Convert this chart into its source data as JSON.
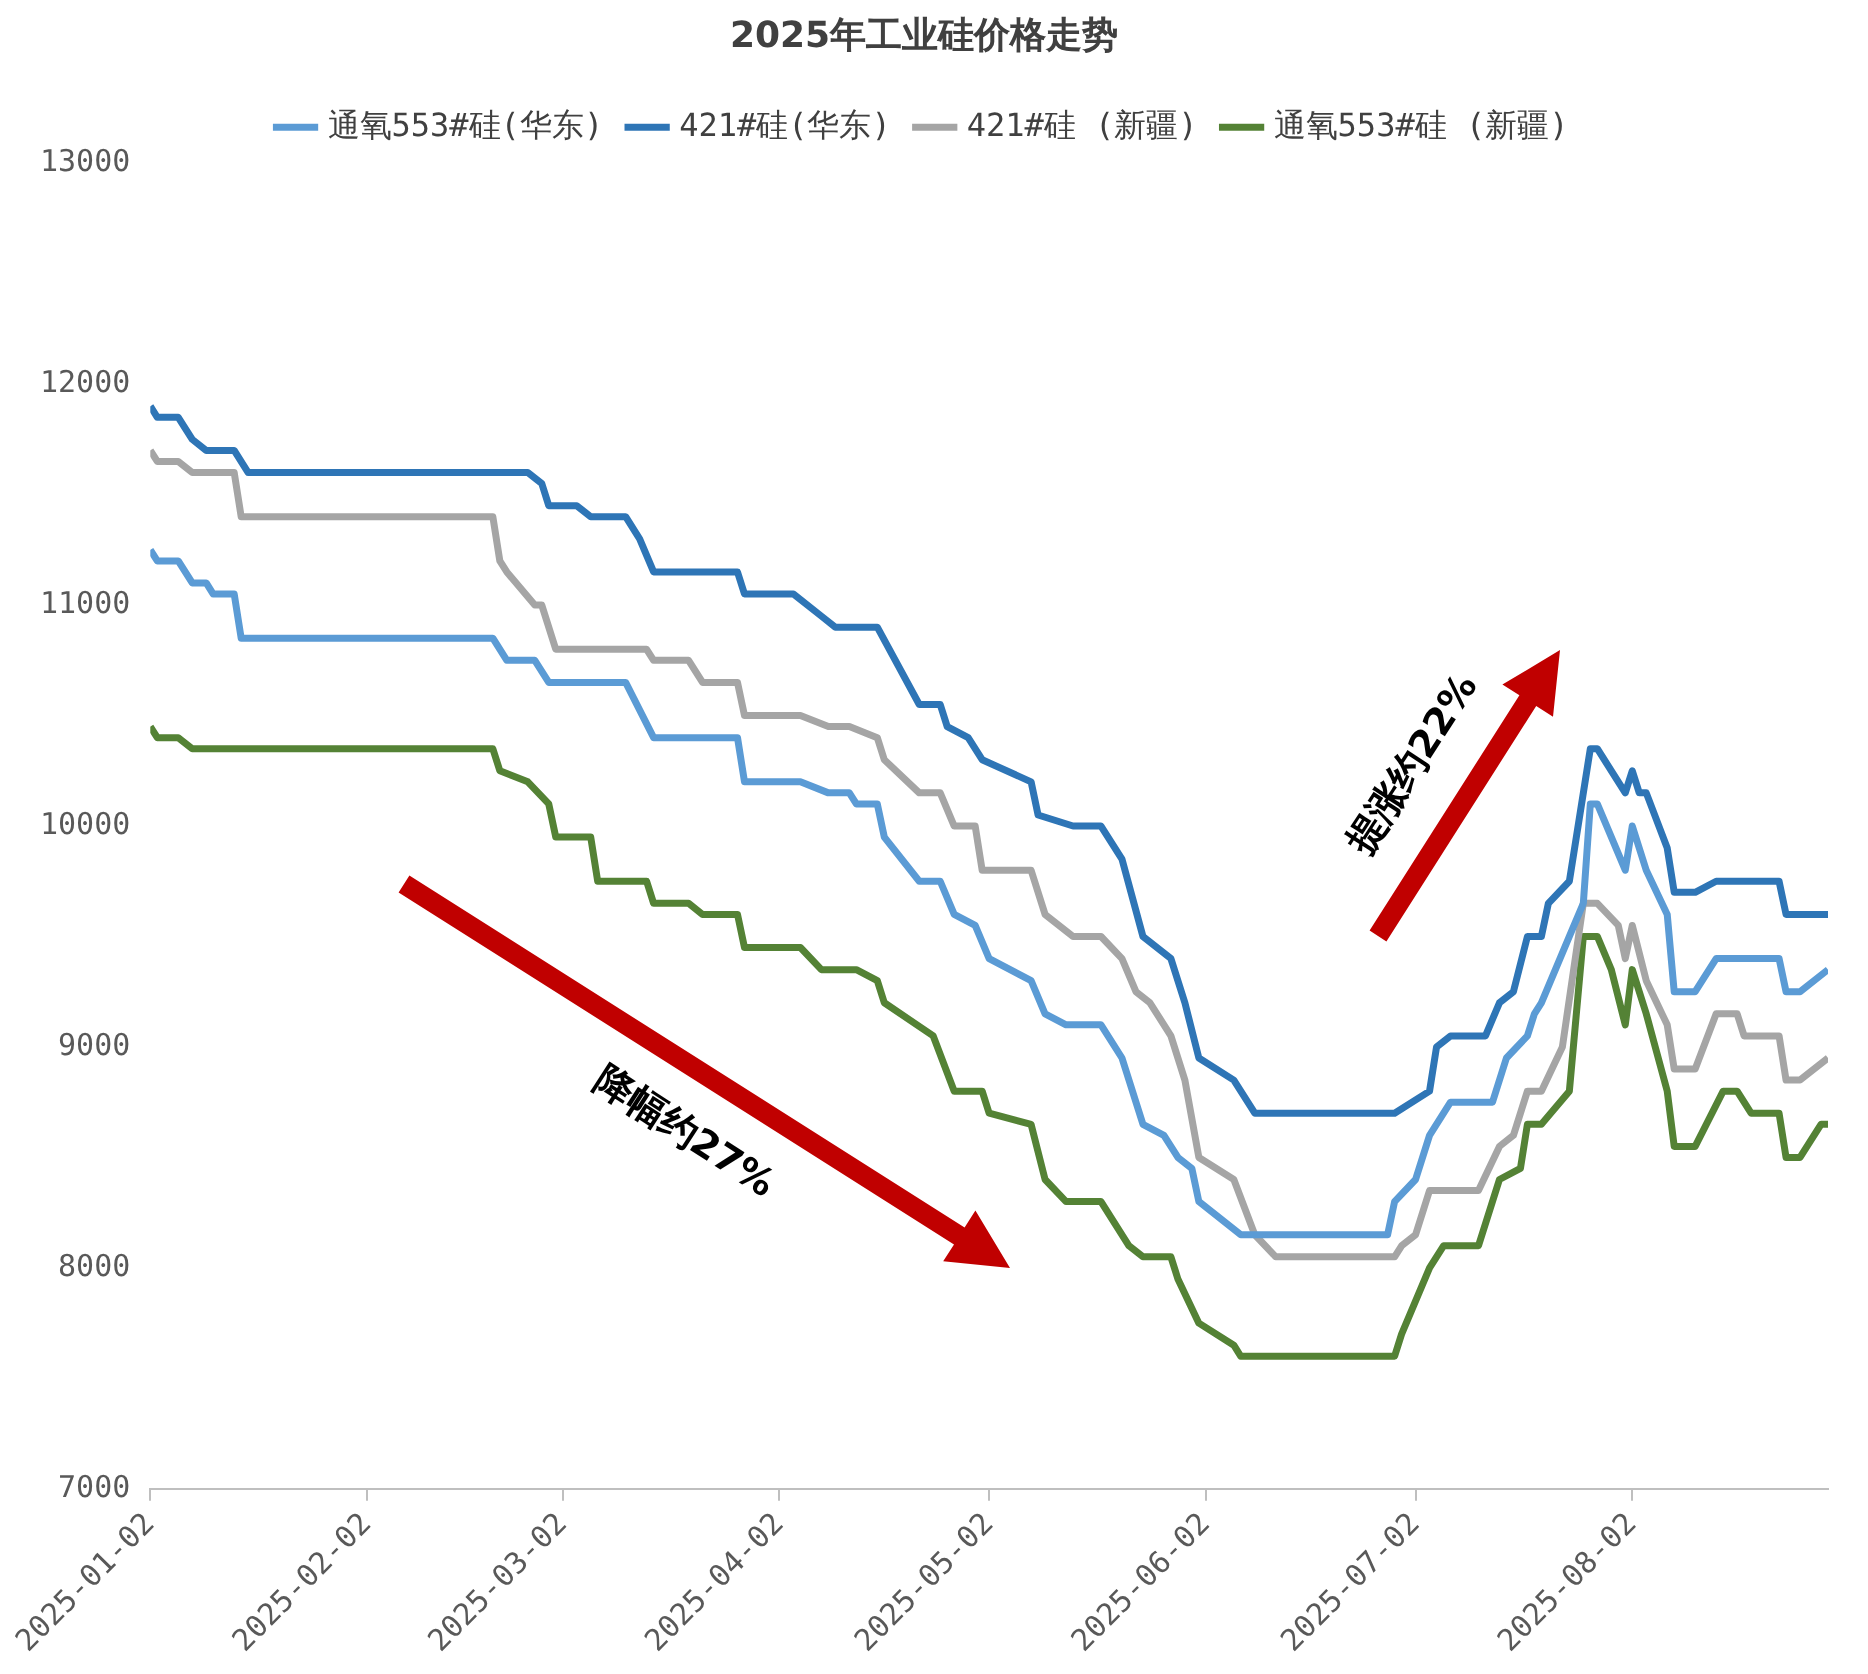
{
  "chart_data": {
    "type": "line",
    "title": "2025年工业硅价格走势",
    "legend": "top",
    "grid": false,
    "xlim": [
      "2025-01-02",
      "2025-08-30"
    ],
    "xticks": [
      "2025-01-02",
      "2025-02-02",
      "2025-03-02",
      "2025-04-02",
      "2025-05-02",
      "2025-06-02",
      "2025-07-02",
      "2025-08-02"
    ],
    "ylim": [
      7000,
      13000
    ],
    "yticks": [
      7000,
      8000,
      9000,
      10000,
      11000,
      12000,
      13000
    ],
    "annotations": [
      "降幅约27%",
      "提涨约22%"
    ],
    "series": [
      {
        "name": "通氧553#硅(华东)",
        "color": "#5b9bd5",
        "x": [
          "2025-01-02",
          "2025-01-03",
          "2025-01-06",
          "2025-01-08",
          "2025-01-10",
          "2025-01-11",
          "2025-01-14",
          "2025-01-15",
          "2025-02-20",
          "2025-02-22",
          "2025-02-26",
          "2025-02-27",
          "2025-02-28",
          "2025-03-11",
          "2025-03-15",
          "2025-03-27",
          "2025-03-28",
          "2025-04-05",
          "2025-04-09",
          "2025-04-12",
          "2025-04-13",
          "2025-04-16",
          "2025-04-17",
          "2025-04-22",
          "2025-04-25",
          "2025-04-27",
          "2025-04-30",
          "2025-05-02",
          "2025-05-08",
          "2025-05-10",
          "2025-05-13",
          "2025-05-18",
          "2025-05-21",
          "2025-05-24",
          "2025-05-27",
          "2025-05-29",
          "2025-05-31",
          "2025-06-01",
          "2025-06-07",
          "2025-06-28",
          "2025-06-29",
          "2025-07-02",
          "2025-07-04",
          "2025-07-07",
          "2025-07-13",
          "2025-07-15",
          "2025-07-18",
          "2025-07-19",
          "2025-07-20",
          "2025-07-22",
          "2025-07-24",
          "2025-07-26",
          "2025-07-27",
          "2025-07-28",
          "2025-08-01",
          "2025-08-02",
          "2025-08-04",
          "2025-08-07",
          "2025-08-08",
          "2025-08-11",
          "2025-08-14",
          "2025-08-23",
          "2025-08-24",
          "2025-08-26",
          "2025-08-30"
        ],
        "values": [
          11250,
          11200,
          11200,
          11100,
          11100,
          11050,
          11050,
          10850,
          10850,
          10750,
          10750,
          10700,
          10650,
          10650,
          10400,
          10400,
          10200,
          10200,
          10150,
          10150,
          10100,
          10100,
          9950,
          9750,
          9750,
          9600,
          9550,
          9400,
          9300,
          9150,
          9100,
          9100,
          8950,
          8650,
          8600,
          8500,
          8450,
          8300,
          8150,
          8150,
          8300,
          8400,
          8600,
          8750,
          8750,
          8950,
          9050,
          9150,
          9200,
          9350,
          9500,
          9650,
          10100,
          10100,
          9800,
          10000,
          9800,
          9600,
          9250,
          9250,
          9400,
          9400,
          9250,
          9250,
          9350
        ]
      },
      {
        "name": "421#硅(华东)",
        "color": "#2e75b6",
        "x": [
          "2025-01-02",
          "2025-01-03",
          "2025-01-06",
          "2025-01-08",
          "2025-01-10",
          "2025-01-14",
          "2025-01-16",
          "2025-02-25",
          "2025-02-27",
          "2025-02-28",
          "2025-03-04",
          "2025-03-06",
          "2025-03-11",
          "2025-03-13",
          "2025-03-15",
          "2025-03-27",
          "2025-03-28",
          "2025-04-04",
          "2025-04-08",
          "2025-04-10",
          "2025-04-16",
          "2025-04-22",
          "2025-04-25",
          "2025-04-26",
          "2025-04-29",
          "2025-05-01",
          "2025-05-08",
          "2025-05-09",
          "2025-05-14",
          "2025-05-18",
          "2025-05-21",
          "2025-05-24",
          "2025-05-28",
          "2025-05-30",
          "2025-06-01",
          "2025-06-06",
          "2025-06-09",
          "2025-06-29",
          "2025-07-04",
          "2025-07-05",
          "2025-07-07",
          "2025-07-12",
          "2025-07-14",
          "2025-07-16",
          "2025-07-18",
          "2025-07-20",
          "2025-07-21",
          "2025-07-24",
          "2025-07-27",
          "2025-07-28",
          "2025-08-01",
          "2025-08-02",
          "2025-08-03",
          "2025-08-04",
          "2025-08-07",
          "2025-08-08",
          "2025-08-11",
          "2025-08-14",
          "2025-08-23",
          "2025-08-24",
          "2025-08-30"
        ],
        "values": [
          11900,
          11850,
          11850,
          11750,
          11700,
          11700,
          11600,
          11600,
          11550,
          11450,
          11450,
          11400,
          11400,
          11300,
          11150,
          11150,
          11050,
          11050,
          10950,
          10900,
          10900,
          10550,
          10550,
          10450,
          10400,
          10300,
          10200,
          10050,
          10000,
          10000,
          9850,
          9500,
          9400,
          9200,
          8950,
          8850,
          8700,
          8700,
          8800,
          9000,
          9050,
          9050,
          9200,
          9250,
          9500,
          9500,
          9650,
          9750,
          10350,
          10350,
          10150,
          10250,
          10150,
          10150,
          9900,
          9700,
          9700,
          9750,
          9750,
          9600,
          9600
        ]
      },
      {
        "name": "421#硅 (新疆)",
        "color": "#a5a5a5",
        "x": [
          "2025-01-02",
          "2025-01-03",
          "2025-01-06",
          "2025-01-08",
          "2025-01-14",
          "2025-01-15",
          "2025-02-20",
          "2025-02-21",
          "2025-02-22",
          "2025-02-26",
          "2025-02-27",
          "2025-03-01",
          "2025-03-14",
          "2025-03-15",
          "2025-03-20",
          "2025-03-22",
          "2025-03-27",
          "2025-03-28",
          "2025-04-05",
          "2025-04-09",
          "2025-04-12",
          "2025-04-16",
          "2025-04-17",
          "2025-04-22",
          "2025-04-25",
          "2025-04-27",
          "2025-04-30",
          "2025-05-01",
          "2025-05-08",
          "2025-05-10",
          "2025-05-14",
          "2025-05-18",
          "2025-05-21",
          "2025-05-23",
          "2025-05-25",
          "2025-05-28",
          "2025-05-30",
          "2025-06-01",
          "2025-06-06",
          "2025-06-09",
          "2025-06-12",
          "2025-06-29",
          "2025-06-30",
          "2025-07-02",
          "2025-07-04",
          "2025-07-11",
          "2025-07-14",
          "2025-07-16",
          "2025-07-18",
          "2025-07-20",
          "2025-07-23",
          "2025-07-26",
          "2025-07-28",
          "2025-07-31",
          "2025-08-01",
          "2025-08-02",
          "2025-08-04",
          "2025-08-07",
          "2025-08-08",
          "2025-08-11",
          "2025-08-14",
          "2025-08-17",
          "2025-08-18",
          "2025-08-23",
          "2025-08-24",
          "2025-08-26",
          "2025-08-30"
        ],
        "values": [
          11700,
          11650,
          11650,
          11600,
          11600,
          11400,
          11400,
          11200,
          11150,
          11000,
          11000,
          10800,
          10800,
          10750,
          10750,
          10650,
          10650,
          10500,
          10500,
          10450,
          10450,
          10400,
          10300,
          10150,
          10150,
          10000,
          10000,
          9800,
          9800,
          9600,
          9500,
          9500,
          9400,
          9250,
          9200,
          9050,
          8850,
          8500,
          8400,
          8150,
          8050,
          8050,
          8100,
          8150,
          8350,
          8350,
          8550,
          8600,
          8800,
          8800,
          9000,
          9650,
          9650,
          9550,
          9400,
          9550,
          9300,
          9100,
          8900,
          8900,
          9150,
          9150,
          9050,
          9050,
          8850,
          8850,
          8950
        ]
      },
      {
        "name": "通氧553#硅 (新疆)",
        "color": "#548235",
        "x": [
          "2025-01-02",
          "2025-01-03",
          "2025-01-06",
          "2025-01-08",
          "2025-02-20",
          "2025-02-21",
          "2025-02-25",
          "2025-02-28",
          "2025-03-01",
          "2025-03-06",
          "2025-03-07",
          "2025-03-14",
          "2025-03-15",
          "2025-03-20",
          "2025-03-22",
          "2025-03-27",
          "2025-03-28",
          "2025-04-05",
          "2025-04-08",
          "2025-04-13",
          "2025-04-16",
          "2025-04-17",
          "2025-04-24",
          "2025-04-27",
          "2025-05-01",
          "2025-05-02",
          "2025-05-08",
          "2025-05-10",
          "2025-05-13",
          "2025-05-18",
          "2025-05-22",
          "2025-05-24",
          "2025-05-28",
          "2025-05-29",
          "2025-06-01",
          "2025-06-06",
          "2025-06-07",
          "2025-06-29",
          "2025-06-30",
          "2025-07-04",
          "2025-07-06",
          "2025-07-11",
          "2025-07-14",
          "2025-07-17",
          "2025-07-18",
          "2025-07-20",
          "2025-07-24",
          "2025-07-26",
          "2025-07-28",
          "2025-07-30",
          "2025-08-01",
          "2025-08-02",
          "2025-08-04",
          "2025-08-07",
          "2025-08-08",
          "2025-08-11",
          "2025-08-15",
          "2025-08-17",
          "2025-08-19",
          "2025-08-23",
          "2025-08-24",
          "2025-08-26",
          "2025-08-29",
          "2025-08-30"
        ],
        "values": [
          10450,
          10400,
          10400,
          10350,
          10350,
          10250,
          10200,
          10100,
          9950,
          9950,
          9750,
          9750,
          9650,
          9650,
          9600,
          9600,
          9450,
          9450,
          9350,
          9350,
          9300,
          9200,
          9050,
          8800,
          8800,
          8700,
          8650,
          8400,
          8300,
          8300,
          8100,
          8050,
          8050,
          7950,
          7750,
          7650,
          7600,
          7600,
          7700,
          8000,
          8100,
          8100,
          8400,
          8450,
          8650,
          8650,
          8800,
          9500,
          9500,
          9350,
          9100,
          9350,
          9150,
          8800,
          8550,
          8550,
          8800,
          8800,
          8700,
          8700,
          8500,
          8500,
          8650,
          8650
        ]
      }
    ]
  }
}
